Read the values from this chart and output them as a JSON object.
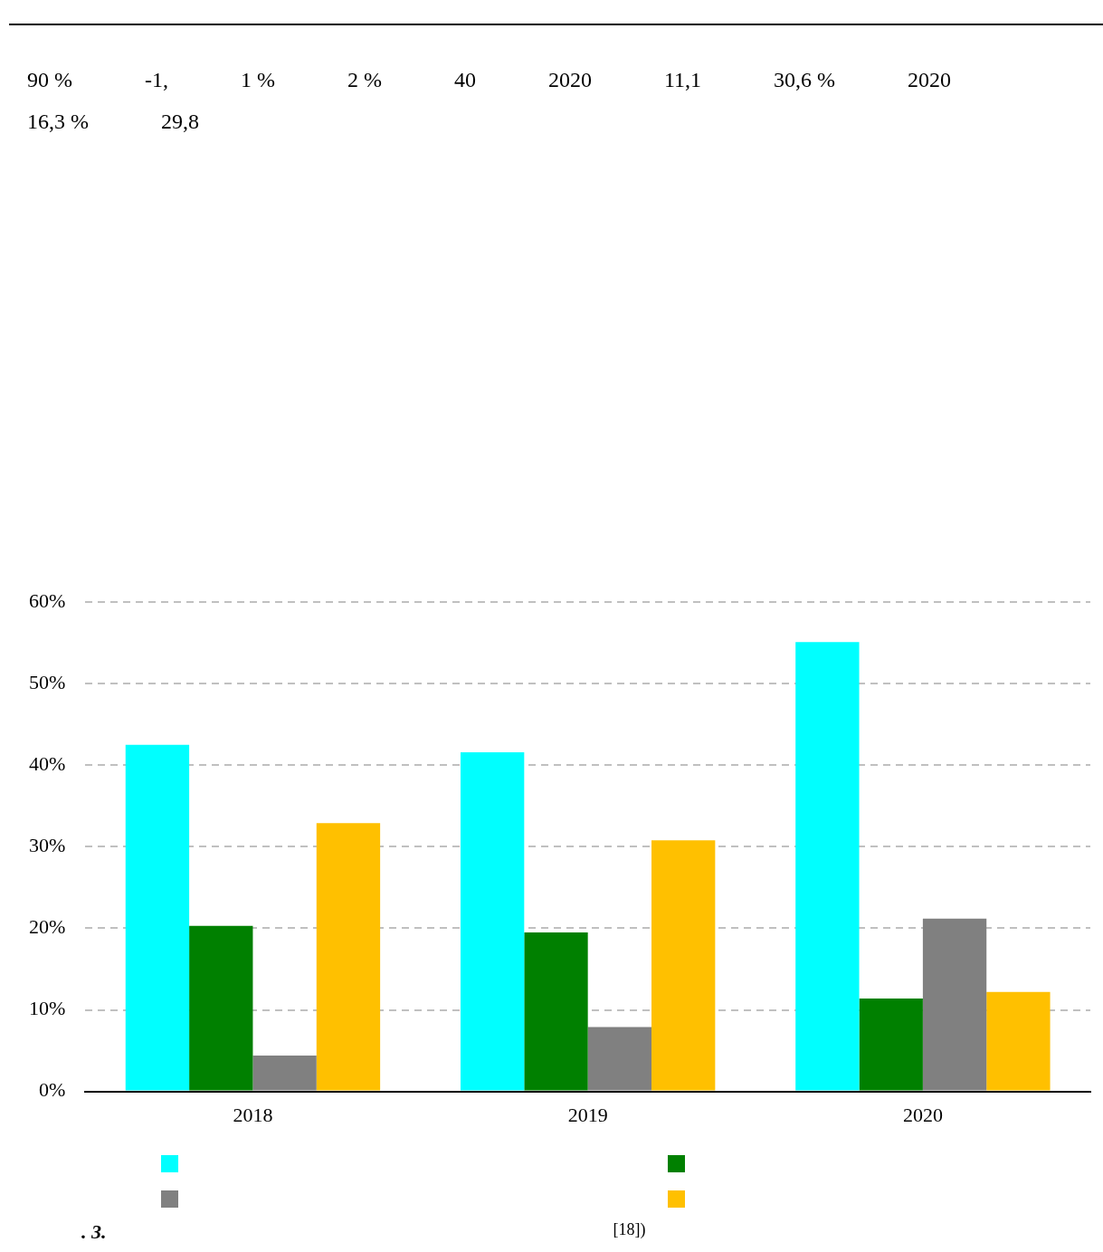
{
  "chart_data": {
    "type": "bar",
    "categories": [
      "2018",
      "2019",
      "2020"
    ],
    "series": [
      {
        "color": "#00ffff",
        "values": [
          42.5,
          41.6,
          55.1
        ]
      },
      {
        "color": "#008000",
        "values": [
          20.3,
          19.5,
          11.4
        ]
      },
      {
        "color": "#808080",
        "values": [
          4.4,
          7.9,
          21.2
        ]
      },
      {
        "color": "#ffc000",
        "values": [
          32.9,
          30.8,
          12.2
        ]
      }
    ],
    "ylim": [
      0,
      60
    ],
    "yticks": [
      {
        "value": 0,
        "label": "0%"
      },
      {
        "value": 10,
        "label": "10%"
      },
      {
        "value": 20,
        "label": "20%"
      },
      {
        "value": 30,
        "label": "30%"
      },
      {
        "value": 40,
        "label": "40%"
      },
      {
        "value": 50,
        "label": "50%"
      },
      {
        "value": 60,
        "label": "60%"
      }
    ],
    "grid": "y",
    "annotations": [
      "90 %",
      "-1,",
      "1 %",
      "2 %",
      "40",
      "2020",
      "11,1",
      "30,6 %",
      "2020",
      "16,3 %",
      "29,8",
      ". 3.",
      "[18])"
    ]
  }
}
